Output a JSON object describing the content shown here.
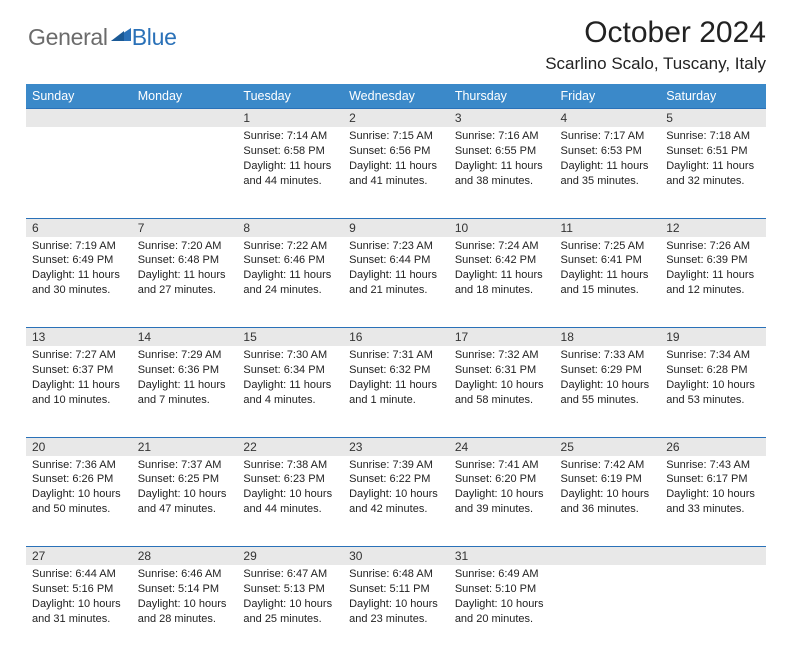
{
  "logo": {
    "part1": "General",
    "part2": "Blue"
  },
  "monthTitle": "October 2024",
  "location": "Scarlino Scalo, Tuscany, Italy",
  "colors": {
    "headerBg": "#3b89c9",
    "rule": "#2a71b8",
    "dayNumBg": "#e8e8e8",
    "text": "#222222",
    "page": "#ffffff"
  },
  "fonts": {
    "titleSize": 30,
    "locationSize": 17,
    "dayHeaderSize": 12.5,
    "dayNumSize": 12,
    "bodySize": 11
  },
  "dayHeaders": [
    "Sunday",
    "Monday",
    "Tuesday",
    "Wednesday",
    "Thursday",
    "Friday",
    "Saturday"
  ],
  "weeks": [
    [
      null,
      null,
      {
        "n": "1",
        "sr": "7:14 AM",
        "ss": "6:58 PM",
        "dl": "11 hours and 44 minutes."
      },
      {
        "n": "2",
        "sr": "7:15 AM",
        "ss": "6:56 PM",
        "dl": "11 hours and 41 minutes."
      },
      {
        "n": "3",
        "sr": "7:16 AM",
        "ss": "6:55 PM",
        "dl": "11 hours and 38 minutes."
      },
      {
        "n": "4",
        "sr": "7:17 AM",
        "ss": "6:53 PM",
        "dl": "11 hours and 35 minutes."
      },
      {
        "n": "5",
        "sr": "7:18 AM",
        "ss": "6:51 PM",
        "dl": "11 hours and 32 minutes."
      }
    ],
    [
      {
        "n": "6",
        "sr": "7:19 AM",
        "ss": "6:49 PM",
        "dl": "11 hours and 30 minutes."
      },
      {
        "n": "7",
        "sr": "7:20 AM",
        "ss": "6:48 PM",
        "dl": "11 hours and 27 minutes."
      },
      {
        "n": "8",
        "sr": "7:22 AM",
        "ss": "6:46 PM",
        "dl": "11 hours and 24 minutes."
      },
      {
        "n": "9",
        "sr": "7:23 AM",
        "ss": "6:44 PM",
        "dl": "11 hours and 21 minutes."
      },
      {
        "n": "10",
        "sr": "7:24 AM",
        "ss": "6:42 PM",
        "dl": "11 hours and 18 minutes."
      },
      {
        "n": "11",
        "sr": "7:25 AM",
        "ss": "6:41 PM",
        "dl": "11 hours and 15 minutes."
      },
      {
        "n": "12",
        "sr": "7:26 AM",
        "ss": "6:39 PM",
        "dl": "11 hours and 12 minutes."
      }
    ],
    [
      {
        "n": "13",
        "sr": "7:27 AM",
        "ss": "6:37 PM",
        "dl": "11 hours and 10 minutes."
      },
      {
        "n": "14",
        "sr": "7:29 AM",
        "ss": "6:36 PM",
        "dl": "11 hours and 7 minutes."
      },
      {
        "n": "15",
        "sr": "7:30 AM",
        "ss": "6:34 PM",
        "dl": "11 hours and 4 minutes."
      },
      {
        "n": "16",
        "sr": "7:31 AM",
        "ss": "6:32 PM",
        "dl": "11 hours and 1 minute."
      },
      {
        "n": "17",
        "sr": "7:32 AM",
        "ss": "6:31 PM",
        "dl": "10 hours and 58 minutes."
      },
      {
        "n": "18",
        "sr": "7:33 AM",
        "ss": "6:29 PM",
        "dl": "10 hours and 55 minutes."
      },
      {
        "n": "19",
        "sr": "7:34 AM",
        "ss": "6:28 PM",
        "dl": "10 hours and 53 minutes."
      }
    ],
    [
      {
        "n": "20",
        "sr": "7:36 AM",
        "ss": "6:26 PM",
        "dl": "10 hours and 50 minutes."
      },
      {
        "n": "21",
        "sr": "7:37 AM",
        "ss": "6:25 PM",
        "dl": "10 hours and 47 minutes."
      },
      {
        "n": "22",
        "sr": "7:38 AM",
        "ss": "6:23 PM",
        "dl": "10 hours and 44 minutes."
      },
      {
        "n": "23",
        "sr": "7:39 AM",
        "ss": "6:22 PM",
        "dl": "10 hours and 42 minutes."
      },
      {
        "n": "24",
        "sr": "7:41 AM",
        "ss": "6:20 PM",
        "dl": "10 hours and 39 minutes."
      },
      {
        "n": "25",
        "sr": "7:42 AM",
        "ss": "6:19 PM",
        "dl": "10 hours and 36 minutes."
      },
      {
        "n": "26",
        "sr": "7:43 AM",
        "ss": "6:17 PM",
        "dl": "10 hours and 33 minutes."
      }
    ],
    [
      {
        "n": "27",
        "sr": "6:44 AM",
        "ss": "5:16 PM",
        "dl": "10 hours and 31 minutes."
      },
      {
        "n": "28",
        "sr": "6:46 AM",
        "ss": "5:14 PM",
        "dl": "10 hours and 28 minutes."
      },
      {
        "n": "29",
        "sr": "6:47 AM",
        "ss": "5:13 PM",
        "dl": "10 hours and 25 minutes."
      },
      {
        "n": "30",
        "sr": "6:48 AM",
        "ss": "5:11 PM",
        "dl": "10 hours and 23 minutes."
      },
      {
        "n": "31",
        "sr": "6:49 AM",
        "ss": "5:10 PM",
        "dl": "10 hours and 20 minutes."
      },
      null,
      null
    ]
  ],
  "labels": {
    "sunrise": "Sunrise: ",
    "sunset": "Sunset: ",
    "daylight": "Daylight: "
  }
}
